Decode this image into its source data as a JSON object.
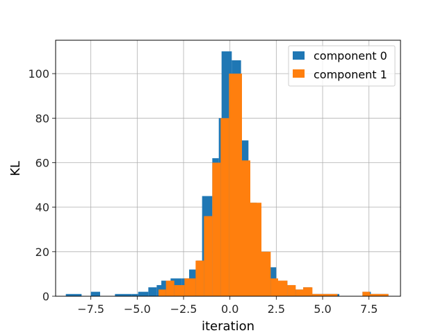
{
  "chart_data": {
    "type": "bar",
    "subtype": "histogram",
    "title": "",
    "xlabel": "iteration",
    "ylabel": "KL",
    "xlim": [
      -9.4,
      9.2
    ],
    "ylim": [
      0,
      115
    ],
    "xticks": [
      -7.5,
      -5.0,
      -2.5,
      0.0,
      2.5,
      5.0,
      7.5
    ],
    "xtick_labels": [
      "−7.5",
      "−5.0",
      "−2.5",
      "0.0",
      "2.5",
      "5.0",
      "7.5"
    ],
    "yticks": [
      0,
      20,
      40,
      60,
      80,
      100
    ],
    "ytick_labels": [
      "0",
      "20",
      "40",
      "60",
      "80",
      "100"
    ],
    "grid": true,
    "legend_position": "top-right",
    "series": [
      {
        "name": "component 0",
        "color": "#1f77b4",
        "bins": [
          [
            -8.85,
            -8.0,
            1
          ],
          [
            -7.5,
            -7.0,
            2
          ],
          [
            -6.2,
            -5.3,
            1
          ],
          [
            -5.3,
            -4.95,
            1
          ],
          [
            -4.95,
            -4.4,
            2
          ],
          [
            -4.4,
            -3.95,
            4
          ],
          [
            -3.95,
            -3.7,
            5
          ],
          [
            -3.7,
            -3.2,
            7
          ],
          [
            -3.2,
            -2.6,
            8
          ],
          [
            -2.6,
            -2.2,
            8
          ],
          [
            -2.2,
            -1.8,
            12
          ],
          [
            -1.8,
            -1.5,
            16
          ],
          [
            -1.5,
            -0.95,
            45
          ],
          [
            -0.95,
            -0.6,
            62
          ],
          [
            -0.6,
            -0.45,
            80
          ],
          [
            -0.45,
            0.1,
            110
          ],
          [
            0.1,
            0.6,
            106
          ],
          [
            0.6,
            1.0,
            70
          ],
          [
            1.0,
            1.45,
            42
          ],
          [
            1.45,
            2.1,
            20
          ],
          [
            2.1,
            2.5,
            13
          ],
          [
            2.5,
            3.1,
            7
          ],
          [
            3.1,
            3.5,
            5
          ],
          [
            3.5,
            3.95,
            3
          ],
          [
            3.95,
            4.4,
            4
          ],
          [
            4.4,
            5.1,
            1
          ],
          [
            5.1,
            5.9,
            1
          ],
          [
            7.15,
            7.6,
            2
          ],
          [
            7.6,
            8.55,
            1
          ]
        ]
      },
      {
        "name": "component 1",
        "color": "#ff7f0e",
        "bins": [
          [
            -3.85,
            -3.45,
            3
          ],
          [
            -3.45,
            -3.0,
            7
          ],
          [
            -3.0,
            -2.45,
            5
          ],
          [
            -2.45,
            -1.85,
            8
          ],
          [
            -1.85,
            -1.4,
            16
          ],
          [
            -1.4,
            -0.95,
            36
          ],
          [
            -0.95,
            -0.5,
            60
          ],
          [
            -0.5,
            -0.05,
            80
          ],
          [
            -0.05,
            0.65,
            100
          ],
          [
            0.65,
            1.1,
            61
          ],
          [
            1.1,
            1.7,
            42
          ],
          [
            1.7,
            2.2,
            20
          ],
          [
            2.2,
            2.6,
            8
          ],
          [
            2.6,
            3.1,
            7
          ],
          [
            3.1,
            3.55,
            5
          ],
          [
            3.55,
            3.95,
            3
          ],
          [
            3.95,
            4.45,
            4
          ],
          [
            4.45,
            5.1,
            1
          ],
          [
            5.1,
            5.8,
            1
          ],
          [
            7.15,
            7.55,
            2
          ],
          [
            7.55,
            8.55,
            1
          ]
        ]
      }
    ]
  }
}
